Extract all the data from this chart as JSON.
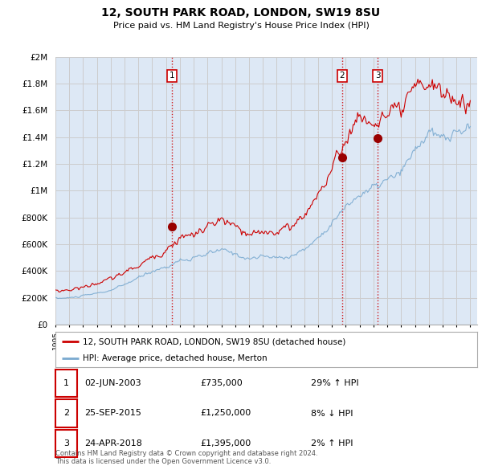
{
  "title": "12, SOUTH PARK ROAD, LONDON, SW19 8SU",
  "subtitle": "Price paid vs. HM Land Registry's House Price Index (HPI)",
  "ylabel_ticks": [
    "£0",
    "£200K",
    "£400K",
    "£600K",
    "£800K",
    "£1M",
    "£1.2M",
    "£1.4M",
    "£1.6M",
    "£1.8M",
    "£2M"
  ],
  "ytick_values": [
    0,
    200000,
    400000,
    600000,
    800000,
    1000000,
    1200000,
    1400000,
    1600000,
    1800000,
    2000000
  ],
  "ylim": [
    0,
    2000000
  ],
  "xlim_start": 1995.0,
  "xlim_end": 2025.5,
  "sale_dates": [
    2003.42,
    2015.73,
    2018.31
  ],
  "sale_prices": [
    735000,
    1250000,
    1395000
  ],
  "sale_labels": [
    "1",
    "2",
    "3"
  ],
  "red_line_color": "#cc0000",
  "blue_line_color": "#7aaad0",
  "sale_dot_color": "#990000",
  "vline_color": "#cc0000",
  "grid_color": "#cccccc",
  "background_color": "#dde8f5",
  "legend_entries": [
    "12, SOUTH PARK ROAD, LONDON, SW19 8SU (detached house)",
    "HPI: Average price, detached house, Merton"
  ],
  "table_data": [
    [
      "1",
      "02-JUN-2003",
      "£735,000",
      "29% ↑ HPI"
    ],
    [
      "2",
      "25-SEP-2015",
      "£1,250,000",
      "8% ↓ HPI"
    ],
    [
      "3",
      "24-APR-2018",
      "£1,395,000",
      "2% ↑ HPI"
    ]
  ],
  "footnote": "Contains HM Land Registry data © Crown copyright and database right 2024.\nThis data is licensed under the Open Government Licence v3.0.",
  "hpi_knots_x": [
    1995.0,
    1996.0,
    1997.0,
    1998.0,
    1999.0,
    2000.0,
    2001.0,
    2002.0,
    2003.0,
    2004.0,
    2005.0,
    2006.0,
    2007.0,
    2008.0,
    2009.0,
    2010.0,
    2011.0,
    2012.0,
    2013.0,
    2014.0,
    2015.0,
    2016.0,
    2017.0,
    2018.0,
    2019.0,
    2020.0,
    2021.0,
    2022.0,
    2023.0,
    2024.0,
    2025.0
  ],
  "hpi_knots_y": [
    195000,
    200000,
    215000,
    235000,
    255000,
    300000,
    350000,
    400000,
    430000,
    480000,
    490000,
    530000,
    560000,
    530000,
    490000,
    510000,
    500000,
    510000,
    560000,
    650000,
    760000,
    880000,
    970000,
    1020000,
    1080000,
    1130000,
    1310000,
    1430000,
    1390000,
    1430000,
    1470000
  ],
  "red_knots_x": [
    1995.0,
    1996.0,
    1997.0,
    1998.0,
    1999.0,
    2000.0,
    2001.0,
    2002.0,
    2003.0,
    2004.0,
    2005.0,
    2006.0,
    2007.0,
    2008.0,
    2009.0,
    2010.0,
    2011.0,
    2012.0,
    2013.0,
    2014.0,
    2015.0,
    2016.0,
    2017.0,
    2018.0,
    2019.0,
    2020.0,
    2021.0,
    2022.0,
    2023.0,
    2024.0,
    2025.0
  ],
  "red_knots_y": [
    250000,
    260000,
    280000,
    310000,
    340000,
    390000,
    440000,
    500000,
    560000,
    650000,
    670000,
    730000,
    780000,
    730000,
    660000,
    690000,
    700000,
    730000,
    820000,
    980000,
    1150000,
    1400000,
    1550000,
    1500000,
    1560000,
    1580000,
    1750000,
    1820000,
    1720000,
    1680000,
    1650000
  ]
}
